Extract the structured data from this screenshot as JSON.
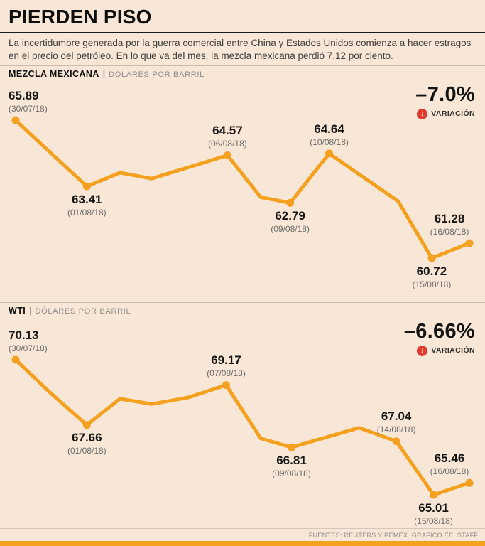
{
  "title": "PIERDEN PISO",
  "subtitle": "La incertidumbre generada por la guerra comercial entre China y Estados Unidos comienza a hacer estragos en el precio del petróleo. En lo que va del mes, la mezcla mexicana perdió 7.12 por ciento.",
  "footer": "FUENTES: REUTERS Y PEMEX. GRÁFICO EE: STAFF.",
  "colors": {
    "background": "#f8e7d6",
    "line": "#f5a01e",
    "variation_red": "#e23b2e",
    "bottom_bar": "#f5a01e"
  },
  "chart_data": [
    {
      "type": "line",
      "name": "MEZCLA MEXICANA",
      "unit": "DÓLARES POR BARRIL",
      "variation": "–7.0%",
      "variation_label": "VARIACIÓN",
      "ylim": [
        60.72,
        65.89
      ],
      "legend": "none",
      "grid": false,
      "points": [
        {
          "date": "(30/07/18)",
          "value": 65.89,
          "xfrac": 0.0,
          "labeled": true,
          "label_pos": "above"
        },
        {
          "value": 64.7,
          "xfrac": 0.075
        },
        {
          "date": "(01/08/18)",
          "value": 63.41,
          "xfrac": 0.157,
          "labeled": true,
          "label_pos": "below"
        },
        {
          "value": 63.92,
          "xfrac": 0.23
        },
        {
          "value": 63.7,
          "xfrac": 0.3
        },
        {
          "date": "(06/08/18)",
          "value": 64.57,
          "xfrac": 0.467,
          "labeled": true,
          "label_pos": "above"
        },
        {
          "value": 63.0,
          "xfrac": 0.54
        },
        {
          "date": "(09/08/18)",
          "value": 62.79,
          "xfrac": 0.605,
          "labeled": true,
          "label_pos": "below"
        },
        {
          "date": "(10/08/18)",
          "value": 64.64,
          "xfrac": 0.691,
          "labeled": true,
          "label_pos": "above"
        },
        {
          "value": 62.85,
          "xfrac": 0.843
        },
        {
          "date": "(15/08/18)",
          "value": 60.72,
          "xfrac": 0.917,
          "labeled": true,
          "label_pos": "below"
        },
        {
          "date": "(16/08/18)",
          "value": 61.28,
          "xfrac": 1.0,
          "labeled": true,
          "label_pos": "above"
        }
      ]
    },
    {
      "type": "line",
      "name": "WTI",
      "unit": "DÓLARES POR BARRIL",
      "variation": "–6.66%",
      "variation_label": "VARIACIÓN",
      "ylim": [
        65.01,
        70.13
      ],
      "legend": "none",
      "grid": false,
      "points": [
        {
          "date": "(30/07/18)",
          "value": 70.13,
          "xfrac": 0.0,
          "labeled": true,
          "label_pos": "above"
        },
        {
          "value": 68.9,
          "xfrac": 0.075
        },
        {
          "date": "(01/08/18)",
          "value": 67.66,
          "xfrac": 0.157,
          "labeled": true,
          "label_pos": "below"
        },
        {
          "value": 68.65,
          "xfrac": 0.23
        },
        {
          "value": 68.45,
          "xfrac": 0.3
        },
        {
          "value": 68.7,
          "xfrac": 0.38
        },
        {
          "date": "(07/08/18)",
          "value": 69.17,
          "xfrac": 0.464,
          "labeled": true,
          "label_pos": "above"
        },
        {
          "value": 67.15,
          "xfrac": 0.54
        },
        {
          "date": "(09/08/18)",
          "value": 66.81,
          "xfrac": 0.608,
          "labeled": true,
          "label_pos": "below"
        },
        {
          "value": 67.55,
          "xfrac": 0.757
        },
        {
          "date": "(14/08/18)",
          "value": 67.04,
          "xfrac": 0.839,
          "labeled": true,
          "label_pos": "above"
        },
        {
          "date": "(15/08/18)",
          "value": 65.01,
          "xfrac": 0.921,
          "labeled": true,
          "label_pos": "below"
        },
        {
          "date": "(16/08/18)",
          "value": 65.46,
          "xfrac": 1.0,
          "labeled": true,
          "label_pos": "above"
        }
      ]
    }
  ]
}
